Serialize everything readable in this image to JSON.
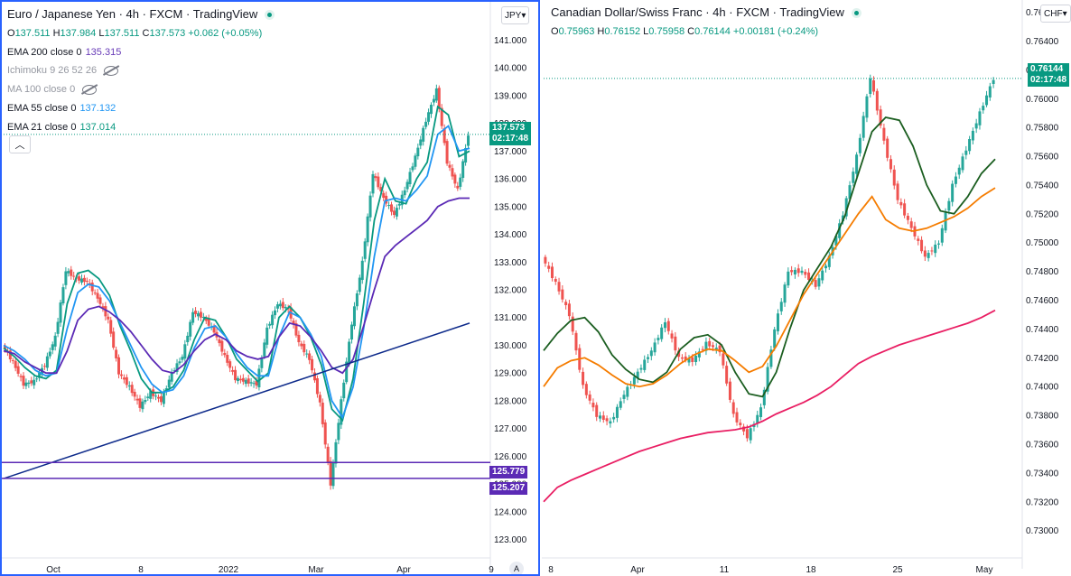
{
  "left": {
    "title": "Euro / Japanese Yen · 4h · FXCM · TradingView",
    "ohlc": {
      "o_label": "O",
      "o": "137.511",
      "h_label": "H",
      "h": "137.984",
      "l_label": "L",
      "l": "137.511",
      "c_label": "C",
      "c": "137.573",
      "chg": "+0.062 (+0.05%)"
    },
    "indicators": [
      {
        "label": "EMA 200 close 0",
        "value": "135.315",
        "color": "#673ab7",
        "hidden": false
      },
      {
        "label": "Ichimoku 9 26 52 26",
        "value": "",
        "color": "#9598a1",
        "hidden": true
      },
      {
        "label": "MA 100 close 0",
        "value": "",
        "color": "#9598a1",
        "hidden": true
      },
      {
        "label": "EMA 55 close 0",
        "value": "137.132",
        "color": "#2196f3",
        "hidden": false
      },
      {
        "label": "EMA 21 close 0",
        "value": "137.014",
        "color": "#089981",
        "hidden": false
      }
    ],
    "currency": "JPY",
    "price_tag": {
      "value": "137.573",
      "time": "02:17:48",
      "color": "#089981"
    },
    "levels": [
      {
        "value": "125.779",
        "color": "#5b2ab5"
      },
      {
        "value": "125.207",
        "color": "#5b2ab5"
      }
    ],
    "collapse_icon": "chevron-up-icon",
    "auto_label": "A"
  },
  "right": {
    "title": "Canadian Dollar/Swiss Franc · 4h · FXCM · TradingView",
    "ohlc": {
      "o_label": "O",
      "o": "0.75963",
      "h_label": "H",
      "h": "0.76152",
      "l_label": "L",
      "l": "0.75958",
      "c_label": "C",
      "c": "0.76144",
      "chg": "+0.00181 (+0.24%)"
    },
    "currency": "CHF",
    "price_tag": {
      "value": "0.76144",
      "time": "02:17:48",
      "color": "#089981"
    }
  },
  "chart_data": [
    {
      "type": "candlestick",
      "title": "Euro / Japanese Yen · 4h · FXCM · TradingView",
      "y_ticks": [
        "141.000",
        "140.000",
        "139.000",
        "138.000",
        "137.000",
        "136.000",
        "135.000",
        "134.000",
        "133.000",
        "132.000",
        "131.000",
        "130.000",
        "129.000",
        "128.000",
        "127.000",
        "126.000",
        "125.000",
        "124.000",
        "123.000"
      ],
      "x_ticks": [
        "Oct",
        "8",
        "2022",
        "Mar",
        "Apr",
        "9"
      ],
      "ylim": [
        122.6,
        141.4
      ],
      "series": [
        {
          "name": "EMA 21",
          "color": "#089981",
          "values": [
            129.9,
            129.6,
            129.2,
            128.9,
            128.8,
            129.1,
            131.5,
            132.6,
            132.7,
            132.4,
            131.8,
            130.7,
            129.8,
            128.8,
            128.3,
            128.3,
            128.5,
            129.1,
            130.2,
            131.0,
            130.9,
            130.3,
            129.5,
            129.1,
            128.7,
            129.0,
            131.0,
            131.4,
            131.0,
            130.3,
            129.3,
            127.7,
            127.3,
            128.8,
            131.5,
            134.5,
            136.0,
            135.2,
            135.1,
            136.0,
            136.6,
            138.6,
            138.3,
            136.8,
            137.0
          ]
        },
        {
          "name": "EMA 55",
          "color": "#2196f3",
          "values": [
            130.0,
            129.8,
            129.5,
            129.1,
            128.9,
            129.0,
            130.6,
            131.9,
            132.2,
            132.1,
            131.6,
            130.8,
            130.0,
            129.2,
            128.6,
            128.3,
            128.4,
            128.9,
            129.9,
            130.6,
            130.7,
            130.3,
            129.7,
            129.2,
            128.9,
            128.9,
            130.3,
            131.2,
            131.0,
            130.4,
            129.6,
            128.0,
            127.4,
            128.5,
            130.6,
            133.2,
            135.2,
            135.3,
            135.2,
            135.6,
            136.1,
            137.6,
            137.9,
            137.0,
            137.1
          ]
        },
        {
          "name": "EMA 200",
          "color": "#5b2ab5",
          "values": [
            129.8,
            129.7,
            129.4,
            129.2,
            129.0,
            129.0,
            129.8,
            130.9,
            131.3,
            131.4,
            131.2,
            130.9,
            130.5,
            130.0,
            129.5,
            129.1,
            129.0,
            129.3,
            129.8,
            130.2,
            130.4,
            130.2,
            129.8,
            129.6,
            129.5,
            129.6,
            130.3,
            130.8,
            130.7,
            130.3,
            129.8,
            129.2,
            129.0,
            129.5,
            130.7,
            132.0,
            133.2,
            133.6,
            133.9,
            134.2,
            134.5,
            135.0,
            135.2,
            135.3,
            135.3
          ]
        }
      ],
      "candles_close": [
        130.0,
        129.4,
        128.6,
        128.7,
        129.3,
        130.3,
        132.7,
        132.4,
        132.3,
        131.7,
        130.9,
        129.0,
        128.5,
        127.8,
        128.3,
        128.0,
        129.0,
        129.6,
        131.2,
        131.0,
        130.5,
        129.6,
        128.8,
        128.7,
        128.6,
        130.6,
        131.5,
        131.3,
        130.1,
        129.5,
        127.9,
        125.0,
        128.0,
        130.8,
        133.0,
        136.2,
        135.3,
        134.7,
        135.6,
        136.8,
        138.1,
        139.2,
        136.6,
        135.6,
        137.6
      ],
      "trendline": {
        "from": [
          0,
          125.2
        ],
        "to": [
          44,
          130.8
        ]
      },
      "levels": [
        125.779,
        125.207
      ]
    },
    {
      "type": "candlestick",
      "title": "Canadian Dollar/Swiss Franc · 4h · FXCM · TradingView",
      "y_ticks": [
        "0.76600",
        "0.76400",
        "0.76200",
        "0.76000",
        "0.75800",
        "0.75600",
        "0.75400",
        "0.75200",
        "0.75000",
        "0.74800",
        "0.74600",
        "0.74400",
        "0.74200",
        "0.74000",
        "0.73800",
        "0.73600",
        "0.73400",
        "0.73200",
        "0.73000"
      ],
      "x_ticks": [
        "8",
        "Apr",
        "11",
        "18",
        "25",
        "May"
      ],
      "ylim": [
        0.7286,
        0.7666
      ],
      "series": [
        {
          "name": "green",
          "color": "#1b5e20",
          "values": [
            0.7425,
            0.7437,
            0.7446,
            0.7448,
            0.7438,
            0.7422,
            0.7412,
            0.7405,
            0.7403,
            0.741,
            0.7426,
            0.7434,
            0.7436,
            0.7429,
            0.741,
            0.7395,
            0.7393,
            0.741,
            0.744,
            0.7467,
            0.7482,
            0.7497,
            0.7518,
            0.7548,
            0.7577,
            0.7587,
            0.7585,
            0.7567,
            0.754,
            0.7522,
            0.752,
            0.7532,
            0.7548,
            0.7558
          ]
        },
        {
          "name": "orange",
          "color": "#f57c00",
          "values": [
            0.74,
            0.7413,
            0.7418,
            0.742,
            0.7415,
            0.7408,
            0.7402,
            0.74,
            0.7402,
            0.7408,
            0.7416,
            0.7422,
            0.7426,
            0.7425,
            0.7418,
            0.741,
            0.7414,
            0.7428,
            0.7446,
            0.7464,
            0.7478,
            0.7492,
            0.7506,
            0.752,
            0.7532,
            0.7516,
            0.751,
            0.7508,
            0.751,
            0.7514,
            0.7518,
            0.7524,
            0.7532,
            0.7538
          ]
        },
        {
          "name": "crimson",
          "color": "#e91e63",
          "values": [
            0.732,
            0.733,
            0.7335,
            0.7339,
            0.7343,
            0.7347,
            0.7351,
            0.7355,
            0.7358,
            0.7361,
            0.7364,
            0.7366,
            0.7368,
            0.7369,
            0.737,
            0.7372,
            0.7376,
            0.7381,
            0.7385,
            0.7389,
            0.7394,
            0.74,
            0.7408,
            0.7416,
            0.7421,
            0.7425,
            0.7429,
            0.7432,
            0.7435,
            0.7438,
            0.7441,
            0.7444,
            0.7448,
            0.7453
          ]
        }
      ],
      "candles_close": [
        0.749,
        0.7472,
        0.745,
        0.74,
        0.738,
        0.7375,
        0.7395,
        0.741,
        0.7425,
        0.7445,
        0.742,
        0.7418,
        0.743,
        0.7425,
        0.738,
        0.7365,
        0.7385,
        0.744,
        0.748,
        0.748,
        0.747,
        0.749,
        0.752,
        0.756,
        0.7615,
        0.757,
        0.753,
        0.751,
        0.749,
        0.75,
        0.754,
        0.7565,
        0.759,
        0.7614
      ]
    }
  ]
}
